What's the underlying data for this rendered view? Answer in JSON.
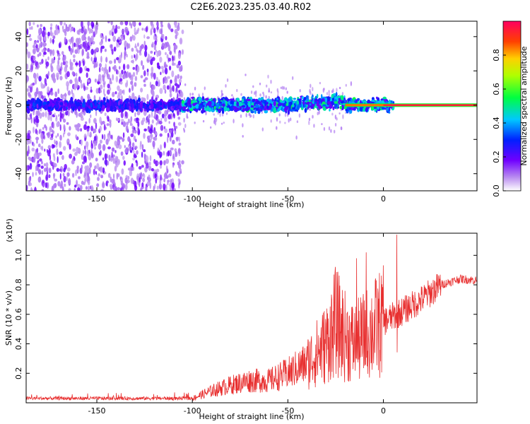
{
  "title": "C2E6.2023.235.03.40.R02",
  "chart_data": [
    {
      "type": "heatmap",
      "xlabel": "Height of straight line (km)",
      "ylabel": "Frequency (Hz)",
      "xlim": [
        -187,
        49
      ],
      "ylim": [
        -50,
        49
      ],
      "xticks": [
        -150,
        -100,
        -50,
        0
      ],
      "yticks": [
        -40,
        -20,
        0,
        20,
        40
      ],
      "colorbar": {
        "label": "Normalized spectral amplitude",
        "range": [
          0.0,
          1.0
        ],
        "ticks": [
          0.0,
          0.2,
          0.4,
          0.6,
          0.8
        ]
      },
      "features": [
        {
          "x_range": [
            -187,
            -105
          ],
          "freq_spread": [
            -50,
            49
          ],
          "amplitude": 0.15
        },
        {
          "x_range": [
            -105,
            -20
          ],
          "center_freq": 0,
          "amplitude": 0.35
        },
        {
          "x_range": [
            -20,
            0
          ],
          "center_freq": 0,
          "amplitude": 0.4
        },
        {
          "x_range": [
            0,
            49
          ],
          "center_freq": 0,
          "amplitude": 0.95
        }
      ]
    },
    {
      "type": "line",
      "xlabel": "Height of straight line (km)",
      "ylabel": "SNR (10 * v/v)",
      "scale_label": "(x10⁴)",
      "xlim": [
        -187,
        49
      ],
      "ylim": [
        0,
        1.15
      ],
      "xticks": [
        -150,
        -100,
        -50,
        0
      ],
      "yticks": [
        0.2,
        0.4,
        0.6,
        0.8,
        1.0
      ],
      "series_color": "#e83030",
      "x": [
        -187,
        -160,
        -140,
        -120,
        -100,
        -90,
        -80,
        -70,
        -60,
        -50,
        -40,
        -30,
        -25,
        -20,
        -15,
        -10,
        -5,
        0,
        10,
        20,
        30,
        40,
        49
      ],
      "y": [
        0.03,
        0.03,
        0.03,
        0.03,
        0.03,
        0.08,
        0.12,
        0.15,
        0.15,
        0.2,
        0.27,
        0.4,
        0.55,
        0.45,
        0.4,
        0.45,
        0.5,
        0.55,
        0.62,
        0.7,
        0.8,
        0.84,
        0.83
      ],
      "spikes": [
        {
          "x": -27,
          "y": 0.7
        },
        {
          "x": -14,
          "y": 0.98
        },
        {
          "x": -9,
          "y": 1.02
        },
        {
          "x": 7,
          "y": 1.14
        }
      ]
    }
  ]
}
